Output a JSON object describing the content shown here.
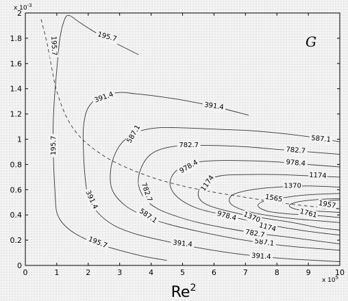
{
  "chart_data": {
    "type": "contour",
    "panel_label": "G",
    "xlabel": "Re",
    "xlabel_superscript": "2",
    "x_multiplier": "x 10",
    "x_multiplier_exp": "5",
    "y_multiplier": "x 10",
    "y_multiplier_exp": "-3",
    "xlim": [
      0,
      10
    ],
    "ylim": [
      0,
      2
    ],
    "xticks": [
      0,
      1,
      2,
      3,
      4,
      5,
      6,
      7,
      8,
      9,
      10
    ],
    "yticks": [
      0,
      0.2,
      0.4,
      0.6,
      0.8,
      1,
      1.2,
      1.4,
      1.6,
      1.8,
      2
    ],
    "xtick_labels": [
      "0",
      "1",
      "2",
      "3",
      "4",
      "5",
      "6",
      "7",
      "8",
      "9",
      "10"
    ],
    "ytick_labels": [
      "0",
      "0.2",
      "0.4",
      "0.6",
      "0.8",
      "1",
      "1.2",
      "1.4",
      "1.6",
      "1.8",
      "2"
    ],
    "grid": false,
    "contours": [
      {
        "level": "195.7",
        "points": [
          [
            0.95,
            0.55
          ],
          [
            0.9,
            0.8
          ],
          [
            0.88,
            1.05
          ],
          [
            0.92,
            1.3
          ],
          [
            1.0,
            1.55
          ],
          [
            1.1,
            1.8
          ],
          [
            1.25,
            1.95
          ],
          [
            1.4,
            1.98
          ],
          [
            1.7,
            1.93
          ],
          [
            2.2,
            1.85
          ],
          [
            2.8,
            1.77
          ],
          [
            3.6,
            1.67
          ]
        ]
      },
      {
        "level": "195.7",
        "points": [
          [
            0.95,
            0.55
          ],
          [
            1.0,
            0.42
          ],
          [
            1.2,
            0.33
          ],
          [
            1.6,
            0.25
          ],
          [
            2.2,
            0.18
          ],
          [
            3.0,
            0.12
          ],
          [
            3.8,
            0.07
          ],
          [
            4.5,
            0.04
          ]
        ]
      },
      {
        "level": "391.4",
        "points": [
          [
            7.1,
            1.19
          ],
          [
            6.0,
            1.26
          ],
          [
            5.0,
            1.31
          ],
          [
            4.2,
            1.34
          ],
          [
            3.5,
            1.36
          ],
          [
            3.0,
            1.37
          ],
          [
            2.4,
            1.34
          ],
          [
            2.0,
            1.25
          ],
          [
            1.85,
            1.1
          ],
          [
            1.85,
            0.9
          ],
          [
            1.9,
            0.7
          ],
          [
            2.0,
            0.55
          ],
          [
            2.3,
            0.42
          ],
          [
            2.8,
            0.32
          ],
          [
            3.5,
            0.25
          ],
          [
            4.5,
            0.19
          ],
          [
            5.5,
            0.14
          ],
          [
            6.5,
            0.1
          ],
          [
            7.5,
            0.07
          ],
          [
            8.5,
            0.05
          ],
          [
            10,
            0.03
          ]
        ]
      },
      {
        "level": "587.1",
        "points": [
          [
            10,
            0.98
          ],
          [
            9.0,
            1.02
          ],
          [
            8.0,
            1.05
          ],
          [
            7.0,
            1.07
          ],
          [
            6.0,
            1.08
          ],
          [
            5.0,
            1.09
          ],
          [
            4.2,
            1.09
          ],
          [
            3.6,
            1.06
          ],
          [
            3.1,
            0.98
          ],
          [
            2.8,
            0.85
          ],
          [
            2.7,
            0.7
          ],
          [
            2.8,
            0.58
          ],
          [
            3.2,
            0.47
          ],
          [
            3.8,
            0.39
          ],
          [
            4.5,
            0.33
          ],
          [
            5.5,
            0.27
          ],
          [
            6.5,
            0.22
          ],
          [
            7.5,
            0.18
          ],
          [
            8.5,
            0.15
          ],
          [
            10,
            0.12
          ]
        ]
      },
      {
        "level": "782.7",
        "points": [
          [
            10,
            0.88
          ],
          [
            9.0,
            0.9
          ],
          [
            8.0,
            0.92
          ],
          [
            7.0,
            0.94
          ],
          [
            6.0,
            0.95
          ],
          [
            5.0,
            0.95
          ],
          [
            4.3,
            0.92
          ],
          [
            3.9,
            0.86
          ],
          [
            3.65,
            0.75
          ],
          [
            3.6,
            0.64
          ],
          [
            3.8,
            0.53
          ],
          [
            4.2,
            0.45
          ],
          [
            4.8,
            0.39
          ],
          [
            5.5,
            0.34
          ],
          [
            6.5,
            0.29
          ],
          [
            7.5,
            0.25
          ],
          [
            8.5,
            0.22
          ],
          [
            10,
            0.17
          ]
        ]
      },
      {
        "level": "978.4",
        "points": [
          [
            10,
            0.78
          ],
          [
            9.0,
            0.8
          ],
          [
            8.0,
            0.82
          ],
          [
            7.0,
            0.83
          ],
          [
            6.0,
            0.83
          ],
          [
            5.3,
            0.81
          ],
          [
            4.8,
            0.75
          ],
          [
            4.6,
            0.66
          ],
          [
            4.7,
            0.58
          ],
          [
            5.0,
            0.51
          ],
          [
            5.5,
            0.45
          ],
          [
            6.3,
            0.4
          ],
          [
            7.2,
            0.35
          ],
          [
            8.0,
            0.31
          ],
          [
            9.0,
            0.27
          ],
          [
            10,
            0.24
          ]
        ]
      },
      {
        "level": "1174",
        "points": [
          [
            10,
            0.7
          ],
          [
            9.0,
            0.71
          ],
          [
            8.0,
            0.72
          ],
          [
            7.0,
            0.72
          ],
          [
            6.2,
            0.71
          ],
          [
            5.7,
            0.66
          ],
          [
            5.5,
            0.58
          ],
          [
            5.6,
            0.51
          ],
          [
            6.0,
            0.46
          ],
          [
            6.8,
            0.41
          ],
          [
            7.7,
            0.37
          ],
          [
            8.5,
            0.34
          ],
          [
            9.3,
            0.3
          ],
          [
            10,
            0.28
          ]
        ]
      },
      {
        "level": "1370",
        "points": [
          [
            10,
            0.62
          ],
          [
            9.0,
            0.63
          ],
          [
            8.0,
            0.62
          ],
          [
            7.2,
            0.6
          ],
          [
            6.6,
            0.56
          ],
          [
            6.5,
            0.5
          ],
          [
            6.8,
            0.45
          ],
          [
            7.4,
            0.41
          ],
          [
            8.2,
            0.38
          ],
          [
            9.0,
            0.36
          ],
          [
            10,
            0.34
          ]
        ]
      },
      {
        "level": "1565",
        "points": [
          [
            10,
            0.57
          ],
          [
            9.0,
            0.56
          ],
          [
            8.3,
            0.54
          ],
          [
            7.6,
            0.51
          ],
          [
            7.4,
            0.47
          ],
          [
            7.7,
            0.43
          ],
          [
            8.3,
            0.41
          ],
          [
            9.0,
            0.4
          ],
          [
            10,
            0.38
          ]
        ]
      },
      {
        "level": "1761",
        "points": [
          [
            10,
            0.53
          ],
          [
            9.2,
            0.52
          ],
          [
            8.6,
            0.5
          ],
          [
            8.4,
            0.47
          ],
          [
            8.7,
            0.44
          ],
          [
            9.3,
            0.43
          ],
          [
            10,
            0.42
          ]
        ]
      },
      {
        "level": "1957",
        "points": [
          [
            10,
            0.52
          ],
          [
            9.6,
            0.51
          ],
          [
            9.35,
            0.48
          ],
          [
            9.5,
            0.45
          ],
          [
            10,
            0.45
          ]
        ]
      }
    ],
    "contour_labels": [
      {
        "text": "195.7",
        "x": 2.6,
        "y": 1.81,
        "rotate": 15
      },
      {
        "text": "195.7",
        "x": 0.9,
        "y": 1.74,
        "rotate": 88
      },
      {
        "text": "195.7",
        "x": 0.9,
        "y": 0.95,
        "rotate": -90
      },
      {
        "text": "195.7",
        "x": 2.3,
        "y": 0.18,
        "rotate": 22
      },
      {
        "text": "391.4",
        "x": 2.5,
        "y": 1.33,
        "rotate": -20
      },
      {
        "text": "391.4",
        "x": 6.0,
        "y": 1.26,
        "rotate": 8
      },
      {
        "text": "391.4",
        "x": 2.1,
        "y": 0.52,
        "rotate": 65
      },
      {
        "text": "391.4",
        "x": 5.0,
        "y": 0.17,
        "rotate": 6
      },
      {
        "text": "391.4",
        "x": 7.5,
        "y": 0.07,
        "rotate": 4
      },
      {
        "text": "587.1",
        "x": 3.45,
        "y": 1.04,
        "rotate": -60
      },
      {
        "text": "587.1",
        "x": 9.4,
        "y": 1.0,
        "rotate": 5
      },
      {
        "text": "587.1",
        "x": 3.9,
        "y": 0.39,
        "rotate": 35
      },
      {
        "text": "587.1",
        "x": 7.6,
        "y": 0.18,
        "rotate": 8
      },
      {
        "text": "782.7",
        "x": 5.2,
        "y": 0.95,
        "rotate": 0
      },
      {
        "text": "782.7",
        "x": 8.6,
        "y": 0.91,
        "rotate": 5
      },
      {
        "text": "782.7",
        "x": 3.85,
        "y": 0.58,
        "rotate": 70
      },
      {
        "text": "782.7",
        "x": 7.3,
        "y": 0.25,
        "rotate": 10
      },
      {
        "text": "978.4",
        "x": 5.2,
        "y": 0.78,
        "rotate": -30
      },
      {
        "text": "978.4",
        "x": 8.6,
        "y": 0.81,
        "rotate": 5
      },
      {
        "text": "978.4",
        "x": 6.4,
        "y": 0.39,
        "rotate": 15
      },
      {
        "text": "1174",
        "x": 5.8,
        "y": 0.65,
        "rotate": -55
      },
      {
        "text": "1174",
        "x": 9.3,
        "y": 0.71,
        "rotate": 3
      },
      {
        "text": "1174",
        "x": 7.7,
        "y": 0.3,
        "rotate": 15
      },
      {
        "text": "1370",
        "x": 8.5,
        "y": 0.63,
        "rotate": 0
      },
      {
        "text": "1370",
        "x": 7.2,
        "y": 0.38,
        "rotate": 22
      },
      {
        "text": "1565",
        "x": 7.9,
        "y": 0.53,
        "rotate": 10
      },
      {
        "text": "1761",
        "x": 9.0,
        "y": 0.41,
        "rotate": 14
      },
      {
        "text": "1957",
        "x": 9.6,
        "y": 0.48,
        "rotate": 10
      }
    ],
    "dashed_curve": [
      [
        0.5,
        1.95
      ],
      [
        0.7,
        1.75
      ],
      [
        0.85,
        1.55
      ],
      [
        1.0,
        1.38
      ],
      [
        1.3,
        1.18
      ],
      [
        1.7,
        1.03
      ],
      [
        2.3,
        0.9
      ],
      [
        3.0,
        0.8
      ],
      [
        4.0,
        0.7
      ],
      [
        5.0,
        0.63
      ],
      [
        6.0,
        0.58
      ],
      [
        7.0,
        0.54
      ],
      [
        8.0,
        0.5
      ],
      [
        9.0,
        0.47
      ],
      [
        10,
        0.45
      ]
    ]
  }
}
